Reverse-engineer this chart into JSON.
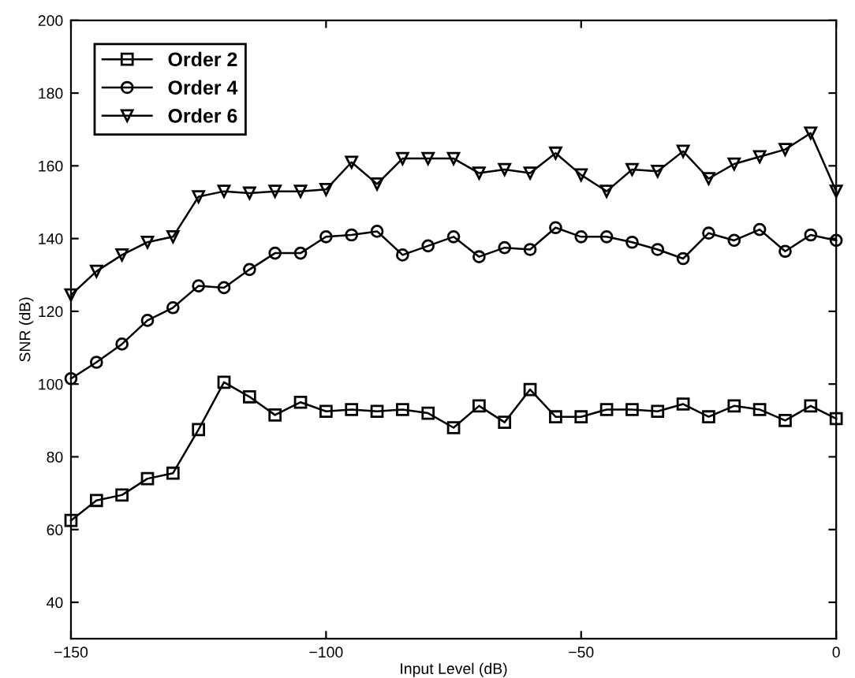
{
  "chart_data": {
    "type": "line",
    "xlabel": "Input Level (dB)",
    "ylabel": "SNR (dB)",
    "x": [
      -150,
      -145,
      -140,
      -135,
      -130,
      -125,
      -120,
      -115,
      -110,
      -105,
      -100,
      -95,
      -90,
      -85,
      -80,
      -75,
      -70,
      -65,
      -60,
      -55,
      -50,
      -45,
      -40,
      -35,
      -30,
      -25,
      -20,
      -15,
      -10,
      -5,
      0
    ],
    "series": [
      {
        "name": "Order 2",
        "color": "#000000",
        "marker": "square",
        "values": [
          62.5,
          68,
          69.5,
          74,
          75.5,
          87.5,
          100.5,
          96.5,
          91.5,
          95,
          92.5,
          93,
          92.5,
          93,
          92,
          88,
          94,
          89.5,
          98.5,
          91,
          91,
          93,
          93,
          92.5,
          94.5,
          91,
          94,
          93,
          90,
          94,
          90.5
        ]
      },
      {
        "name": "Order 4",
        "color": "#000000",
        "marker": "circle",
        "values": [
          101.5,
          106,
          111,
          117.5,
          121,
          127,
          126.5,
          131.5,
          136,
          136,
          140.5,
          141,
          142,
          135.5,
          138,
          140.5,
          135,
          137.5,
          137,
          143,
          140.5,
          140.5,
          139,
          137,
          134.5,
          141.5,
          139.5,
          142.5,
          136.5,
          141,
          139.5
        ]
      },
      {
        "name": "Order 6",
        "color": "#000000",
        "marker": "triangle",
        "values": [
          124.5,
          131,
          135.5,
          139,
          140.5,
          151.5,
          153,
          152.5,
          153,
          153,
          153.5,
          161,
          155,
          162,
          162,
          162,
          158,
          159,
          158,
          163.5,
          157.5,
          153,
          159,
          158.5,
          164,
          156.5,
          160.5,
          162.5,
          164.5,
          169,
          153
        ]
      }
    ],
    "xlim": [
      -150,
      0
    ],
    "xticks": [
      {
        "value": -150,
        "label": "−150"
      },
      {
        "value": -100,
        "label": "−100"
      },
      {
        "value": -50,
        "label": "−50"
      },
      0
    ],
    "ylim": [
      30,
      200
    ],
    "yticks": [
      40,
      60,
      80,
      100,
      120,
      140,
      160,
      180,
      200
    ],
    "grid": false,
    "legend": "top left",
    "line_style": "solid"
  }
}
